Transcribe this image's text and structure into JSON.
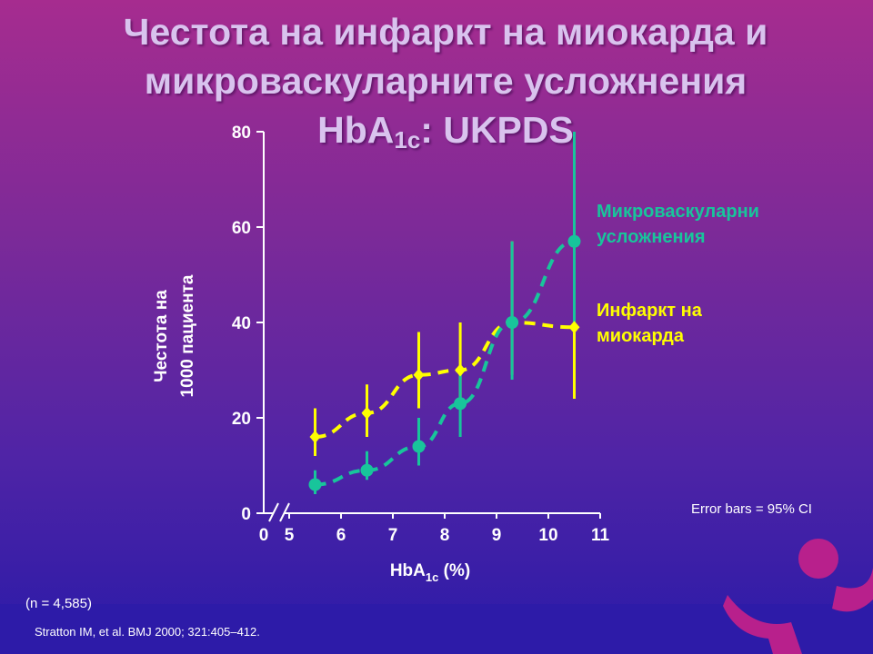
{
  "slide": {
    "title_line1": "Честота на инфаркт на миокарда и",
    "title_line2": "микроваскуларните усложнения",
    "title_line3_main": "HbA",
    "title_line3_sub": "1c",
    "title_line3_tail": ": UKPDS",
    "sample_note": "(n = 4,585)",
    "reference": "Stratton IM, et al. BMJ 2000; 321:405–412.",
    "error_bars_note": "Error bars = 95% CI",
    "annotation_micro_line1": "Микроваскуларни",
    "annotation_micro_line2": "усложнения",
    "annotation_mi_line1": "Инфаркт на",
    "annotation_mi_line2": "миокарда",
    "logo_icon": "figure-logo-icon"
  },
  "chart_data": {
    "type": "line",
    "ylabel_line1": "Честота на",
    "ylabel_line2": "1000 пациента",
    "xlabel_main": "HbA",
    "xlabel_sub": "1c",
    "xlabel_tail": " (%)",
    "x_ticks": [
      "0",
      "5",
      "6",
      "7",
      "8",
      "9",
      "10",
      "11"
    ],
    "y_ticks": [
      "0",
      "20",
      "40",
      "60",
      "80"
    ],
    "xlim": [
      5,
      11
    ],
    "ylim": [
      0,
      80
    ],
    "x_axis_break": true,
    "grid": false,
    "series": [
      {
        "name": "Инфаркт на миокарда",
        "color": "#ffff00",
        "marker": "diamond",
        "points": [
          {
            "x": 5.5,
            "y": 16,
            "lo": 12,
            "hi": 22
          },
          {
            "x": 6.5,
            "y": 21,
            "lo": 16,
            "hi": 27
          },
          {
            "x": 7.5,
            "y": 29,
            "lo": 22,
            "hi": 38
          },
          {
            "x": 8.3,
            "y": 30,
            "lo": 22,
            "hi": 40
          },
          {
            "x": 9.3,
            "y": 40,
            "lo": 29,
            "hi": 57
          },
          {
            "x": 10.5,
            "y": 39,
            "lo": 24,
            "hi": 81
          }
        ]
      },
      {
        "name": "Микроваскуларни усложнения",
        "color": "#18c59b",
        "marker": "circle",
        "points": [
          {
            "x": 5.5,
            "y": 6,
            "lo": 4,
            "hi": 9
          },
          {
            "x": 6.5,
            "y": 9,
            "lo": 7,
            "hi": 13
          },
          {
            "x": 7.5,
            "y": 14,
            "lo": 10,
            "hi": 20
          },
          {
            "x": 8.3,
            "y": 23,
            "lo": 16,
            "hi": 30
          },
          {
            "x": 9.3,
            "y": 40,
            "lo": 28,
            "hi": 57
          },
          {
            "x": 10.5,
            "y": 57,
            "lo": 38,
            "hi": 80
          }
        ]
      }
    ]
  }
}
